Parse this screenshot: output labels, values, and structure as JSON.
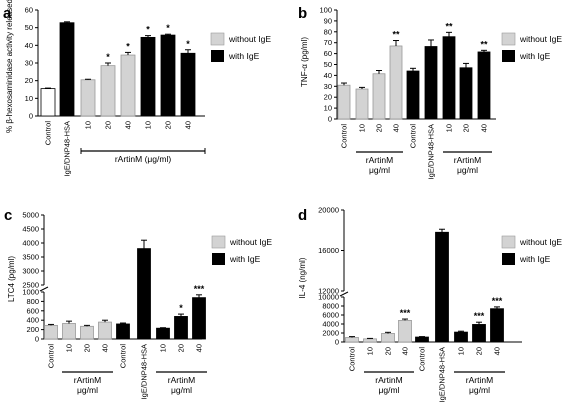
{
  "colors": {
    "without": "#d3d3d3",
    "with": "#000000",
    "control": "#ffffff"
  },
  "chart_data": [
    {
      "panel": "a",
      "type": "bar",
      "ylabel": "% β-hexosaminidase activity released",
      "ylim": [
        0,
        60
      ],
      "yticks": [
        "0",
        "10",
        "20",
        "30",
        "40",
        "50",
        "60"
      ],
      "group_label": "rArtinM (μg/ml)",
      "legend": [
        "without IgE",
        "with IgE"
      ],
      "bars": [
        {
          "label": "Control",
          "value": 15.5,
          "err": 0.3,
          "fill": "control",
          "sig": ""
        },
        {
          "label": "IgE/DNP48-HSA",
          "value": 52.8,
          "err": 0.5,
          "fill": "with",
          "sig": ""
        },
        {
          "label": "10",
          "value": 20.5,
          "err": 0.3,
          "fill": "without",
          "sig": ""
        },
        {
          "label": "20",
          "value": 28.5,
          "err": 1.5,
          "fill": "without",
          "sig": "*"
        },
        {
          "label": "40",
          "value": 34.5,
          "err": 1.5,
          "fill": "without",
          "sig": "*"
        },
        {
          "label": "10",
          "value": 44.5,
          "err": 1.0,
          "fill": "with",
          "sig": "*"
        },
        {
          "label": "20",
          "value": 45.8,
          "err": 0.5,
          "fill": "with",
          "sig": "*"
        },
        {
          "label": "40",
          "value": 35.5,
          "err": 2.0,
          "fill": "with",
          "sig": "*"
        }
      ]
    },
    {
      "panel": "b",
      "type": "bar",
      "ylabel": "TNF-α (pg/ml)",
      "ylim": [
        0,
        100
      ],
      "yticks": [
        "0",
        "10",
        "20",
        "30",
        "40",
        "50",
        "60",
        "70",
        "80",
        "90",
        "100"
      ],
      "group_label_1": "rArtinM",
      "group_sub_1": "μg/ml",
      "group_label_2": "rArtinM",
      "group_sub_2": "μg/ml",
      "legend": [
        "without IgE",
        "with IgE"
      ],
      "bars": [
        {
          "label": "Control",
          "value": 31,
          "err": 2,
          "fill": "without",
          "sig": ""
        },
        {
          "label": "10",
          "value": 27.5,
          "err": 1.5,
          "fill": "without",
          "sig": ""
        },
        {
          "label": "20",
          "value": 41.5,
          "err": 3,
          "fill": "without",
          "sig": ""
        },
        {
          "label": "40",
          "value": 67,
          "err": 5,
          "fill": "without",
          "sig": "**"
        },
        {
          "label": "Control",
          "value": 44,
          "err": 2.5,
          "fill": "with",
          "sig": ""
        },
        {
          "label": "IgE/DNP48-HSA",
          "value": 66.5,
          "err": 6,
          "fill": "with",
          "sig": ""
        },
        {
          "label": "10",
          "value": 75.5,
          "err": 4,
          "fill": "with",
          "sig": "**"
        },
        {
          "label": "20",
          "value": 47,
          "err": 4,
          "fill": "with",
          "sig": ""
        },
        {
          "label": "40",
          "value": 61.5,
          "err": 1.5,
          "fill": "with",
          "sig": "**"
        }
      ]
    },
    {
      "panel": "c",
      "type": "bar",
      "ylabel": "LTC4 (pg/ml)",
      "ylim_lower": [
        0,
        1000
      ],
      "ylim_upper": [
        2500,
        5000
      ],
      "yticks_lower": [
        "0",
        "200",
        "400",
        "600",
        "800",
        "1000"
      ],
      "yticks_upper": [
        "2500",
        "3000",
        "3500",
        "4000",
        "4500",
        "5000"
      ],
      "group_label_1": "rArtinM",
      "group_sub_1": "μg/ml",
      "group_label_2": "rArtinM",
      "group_sub_2": "μg/ml",
      "legend": [
        "without IgE",
        "with IgE"
      ],
      "bars": [
        {
          "label": "Control",
          "value": 290,
          "err": 20,
          "fill": "without",
          "sig": ""
        },
        {
          "label": "10",
          "value": 330,
          "err": 50,
          "fill": "without",
          "sig": ""
        },
        {
          "label": "20",
          "value": 270,
          "err": 20,
          "fill": "without",
          "sig": ""
        },
        {
          "label": "40",
          "value": 360,
          "err": 40,
          "fill": "without",
          "sig": ""
        },
        {
          "label": "Control",
          "value": 320,
          "err": 20,
          "fill": "with",
          "sig": ""
        },
        {
          "label": "IgE/DNP48-HSA",
          "value": 3800,
          "err": 300,
          "fill": "with",
          "sig": ""
        },
        {
          "label": "10",
          "value": 230,
          "err": 10,
          "fill": "with",
          "sig": ""
        },
        {
          "label": "20",
          "value": 480,
          "err": 50,
          "fill": "with",
          "sig": "*"
        },
        {
          "label": "40",
          "value": 880,
          "err": 60,
          "fill": "with",
          "sig": "***"
        }
      ]
    },
    {
      "panel": "d",
      "type": "bar",
      "ylabel": "IL-4 (ng/ml)",
      "ylim_lower": [
        0,
        10000
      ],
      "ylim_upper": [
        12000,
        20000
      ],
      "yticks_lower": [
        "0",
        "2000",
        "4000",
        "6000",
        "8000",
        "10000"
      ],
      "yticks_upper": [
        "12000",
        "16000",
        "20000"
      ],
      "group_label_1": "rArtinM",
      "group_sub_1": "μg/ml",
      "group_label_2": "rArtinM",
      "group_sub_2": "μg/ml",
      "legend": [
        "without IgE",
        "with IgE"
      ],
      "bars": [
        {
          "label": "Control",
          "value": 1000,
          "err": 200,
          "fill": "without",
          "sig": ""
        },
        {
          "label": "10",
          "value": 700,
          "err": 100,
          "fill": "without",
          "sig": ""
        },
        {
          "label": "20",
          "value": 1900,
          "err": 250,
          "fill": "without",
          "sig": ""
        },
        {
          "label": "40",
          "value": 4800,
          "err": 300,
          "fill": "without",
          "sig": "***"
        },
        {
          "label": "Control",
          "value": 1100,
          "err": 100,
          "fill": "with",
          "sig": ""
        },
        {
          "label": "IgE/DNP48-HSA",
          "value": 17800,
          "err": 300,
          "fill": "with",
          "sig": ""
        },
        {
          "label": "10",
          "value": 2200,
          "err": 200,
          "fill": "with",
          "sig": ""
        },
        {
          "label": "20",
          "value": 3900,
          "err": 500,
          "fill": "with",
          "sig": "***"
        },
        {
          "label": "40",
          "value": 7400,
          "err": 400,
          "fill": "with",
          "sig": "***"
        }
      ]
    }
  ]
}
